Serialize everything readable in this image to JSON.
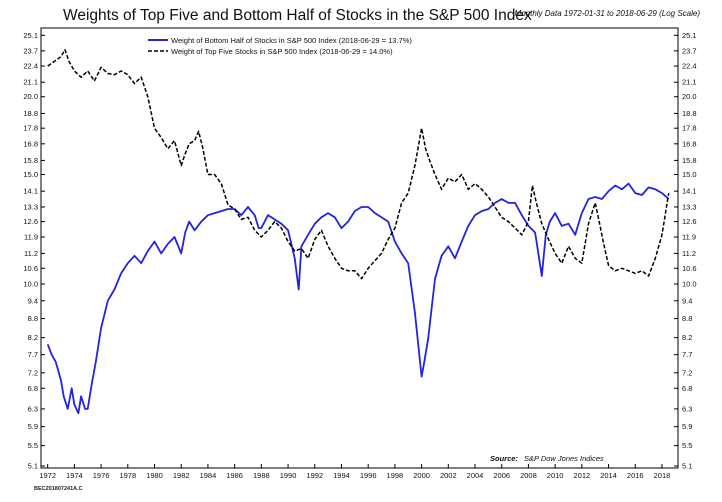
{
  "footer_code": "BEC201807241A.C",
  "chart_data": {
    "type": "line",
    "title": "Weights of Top Five and Bottom Half of Stocks in the S&P 500 Index",
    "subtitle": "Monthly Data 1972-01-31 to 2018-06-29 (Log Scale)",
    "xlabel": "",
    "ylabel": "",
    "xlim": [
      1971.5,
      2019.2
    ],
    "ylim": [
      5.1,
      25.6
    ],
    "log_y": true,
    "grid": false,
    "legend_position": "top-left",
    "x_ticks": [
      "1972",
      "1974",
      "1976",
      "1978",
      "1980",
      "1982",
      "1984",
      "1986",
      "1988",
      "1990",
      "1992",
      "1994",
      "1996",
      "1998",
      "2000",
      "2002",
      "2004",
      "2006",
      "2008",
      "2010",
      "2012",
      "2014",
      "2016",
      "2018"
    ],
    "y_ticks": [
      "5.1",
      "5.5",
      "5.9",
      "6.3",
      "6.8",
      "7.2",
      "7.7",
      "8.2",
      "8.8",
      "9.4",
      "10.0",
      "10.6",
      "11.2",
      "11.9",
      "12.6",
      "13.3",
      "14.1",
      "15.0",
      "15.8",
      "16.8",
      "17.8",
      "18.8",
      "20.0",
      "21.1",
      "22.4",
      "23.7",
      "25.1"
    ],
    "source_label": "Source:",
    "source_text": "S&P Dow Jones Indices",
    "colors": {
      "bottom_half": "#2323e0",
      "top_five": "#000000",
      "axis": "#000000"
    },
    "series": [
      {
        "name": "Weight of Bottom Half of Stocks in S&P 500 Index (2018-06-29 = 13.7%)",
        "style": "solid",
        "x": [
          1972.0,
          1972.3,
          1972.6,
          1973.0,
          1973.2,
          1973.5,
          1973.8,
          1974.0,
          1974.3,
          1974.5,
          1974.8,
          1975.0,
          1975.3,
          1975.6,
          1976.0,
          1976.5,
          1977.0,
          1977.5,
          1978.0,
          1978.5,
          1979.0,
          1979.5,
          1980.0,
          1980.5,
          1981.0,
          1981.5,
          1982.0,
          1982.3,
          1982.6,
          1983.0,
          1983.5,
          1984.0,
          1984.5,
          1985.0,
          1985.5,
          1986.0,
          1986.5,
          1987.0,
          1987.5,
          1987.8,
          1988.0,
          1988.5,
          1989.0,
          1989.5,
          1990.0,
          1990.5,
          1990.8,
          1991.0,
          1991.5,
          1992.0,
          1992.5,
          1993.0,
          1993.5,
          1994.0,
          1994.5,
          1995.0,
          1995.5,
          1996.0,
          1996.5,
          1997.0,
          1997.5,
          1998.0,
          1998.5,
          1999.0,
          1999.5,
          2000.0,
          2000.2,
          2000.5,
          2001.0,
          2001.5,
          2002.0,
          2002.5,
          2003.0,
          2003.5,
          2004.0,
          2004.5,
          2005.0,
          2005.5,
          2006.0,
          2006.5,
          2007.0,
          2007.5,
          2008.0,
          2008.5,
          2008.8,
          2009.0,
          2009.3,
          2009.6,
          2010.0,
          2010.5,
          2011.0,
          2011.5,
          2012.0,
          2012.5,
          2013.0,
          2013.5,
          2014.0,
          2014.5,
          2015.0,
          2015.5,
          2016.0,
          2016.5,
          2017.0,
          2017.5,
          2018.0,
          2018.5
        ],
        "values": [
          8.0,
          7.7,
          7.5,
          7.0,
          6.6,
          6.3,
          6.8,
          6.4,
          6.2,
          6.6,
          6.3,
          6.3,
          6.9,
          7.5,
          8.5,
          9.4,
          9.8,
          10.4,
          10.8,
          11.1,
          10.8,
          11.3,
          11.7,
          11.2,
          11.6,
          11.9,
          11.2,
          12.1,
          12.6,
          12.2,
          12.6,
          12.9,
          13.0,
          13.1,
          13.2,
          13.2,
          12.9,
          13.3,
          12.9,
          12.3,
          12.3,
          12.9,
          12.7,
          12.5,
          12.2,
          11.0,
          9.8,
          11.5,
          12.0,
          12.5,
          12.8,
          13.0,
          12.8,
          12.3,
          12.6,
          13.1,
          13.3,
          13.3,
          13.0,
          12.8,
          12.6,
          11.7,
          11.2,
          10.8,
          9.0,
          7.1,
          7.5,
          8.2,
          10.2,
          11.1,
          11.5,
          11.0,
          11.7,
          12.4,
          12.9,
          13.1,
          13.2,
          13.5,
          13.7,
          13.5,
          13.5,
          12.9,
          12.4,
          12.1,
          11.0,
          10.3,
          12.0,
          12.6,
          13.0,
          12.4,
          12.5,
          12.0,
          13.0,
          13.7,
          13.8,
          13.7,
          14.1,
          14.4,
          14.2,
          14.5,
          14.0,
          13.9,
          14.3,
          14.2,
          14.0,
          13.7
        ]
      },
      {
        "name": "Weight of Top Five Stocks in S&P 500 Index (2018-06-29 = 14.0%)",
        "style": "dashed",
        "x": [
          1972.0,
          1972.5,
          1973.0,
          1973.3,
          1973.6,
          1974.0,
          1974.5,
          1975.0,
          1975.5,
          1976.0,
          1976.5,
          1977.0,
          1977.5,
          1978.0,
          1978.5,
          1979.0,
          1979.5,
          1980.0,
          1980.5,
          1981.0,
          1981.5,
          1982.0,
          1982.3,
          1982.6,
          1983.0,
          1983.3,
          1983.6,
          1984.0,
          1984.5,
          1985.0,
          1985.5,
          1986.0,
          1986.5,
          1987.0,
          1987.5,
          1988.0,
          1988.5,
          1989.0,
          1989.5,
          1990.0,
          1990.5,
          1991.0,
          1991.5,
          1992.0,
          1992.5,
          1993.0,
          1993.5,
          1994.0,
          1994.5,
          1995.0,
          1995.5,
          1996.0,
          1996.5,
          1997.0,
          1997.5,
          1998.0,
          1998.5,
          1999.0,
          1999.5,
          2000.0,
          2000.3,
          2000.6,
          2001.0,
          2001.5,
          2002.0,
          2002.5,
          2003.0,
          2003.5,
          2004.0,
          2004.5,
          2005.0,
          2005.5,
          2006.0,
          2006.5,
          2007.0,
          2007.5,
          2008.0,
          2008.3,
          2008.6,
          2009.0,
          2009.5,
          2010.0,
          2010.5,
          2011.0,
          2011.5,
          2012.0,
          2012.5,
          2013.0,
          2013.3,
          2013.6,
          2014.0,
          2014.5,
          2015.0,
          2015.5,
          2016.0,
          2016.5,
          2017.0,
          2017.5,
          2018.0,
          2018.5
        ],
        "values": [
          22.4,
          22.8,
          23.2,
          23.8,
          22.8,
          22.0,
          21.5,
          22.0,
          21.2,
          22.3,
          21.8,
          21.7,
          22.0,
          21.7,
          21.0,
          21.5,
          20.0,
          17.8,
          17.2,
          16.5,
          17.0,
          15.5,
          16.2,
          16.8,
          17.0,
          17.6,
          16.6,
          15.0,
          15.0,
          14.5,
          13.4,
          13.2,
          12.7,
          12.8,
          12.2,
          11.9,
          12.2,
          12.6,
          12.3,
          11.7,
          11.3,
          11.4,
          11.0,
          11.8,
          12.2,
          11.5,
          11.0,
          10.6,
          10.5,
          10.5,
          10.2,
          10.6,
          10.9,
          11.2,
          11.8,
          12.3,
          13.5,
          14.0,
          15.5,
          17.8,
          16.5,
          15.8,
          15.0,
          14.2,
          14.8,
          14.6,
          15.0,
          14.2,
          14.5,
          14.2,
          13.8,
          13.3,
          12.8,
          12.6,
          12.3,
          12.0,
          12.6,
          14.4,
          13.5,
          12.5,
          11.8,
          11.2,
          10.8,
          11.5,
          11.0,
          10.8,
          12.5,
          13.5,
          12.6,
          11.7,
          10.7,
          10.5,
          10.6,
          10.5,
          10.4,
          10.5,
          10.3,
          11.0,
          12.0,
          14.0
        ]
      }
    ]
  }
}
